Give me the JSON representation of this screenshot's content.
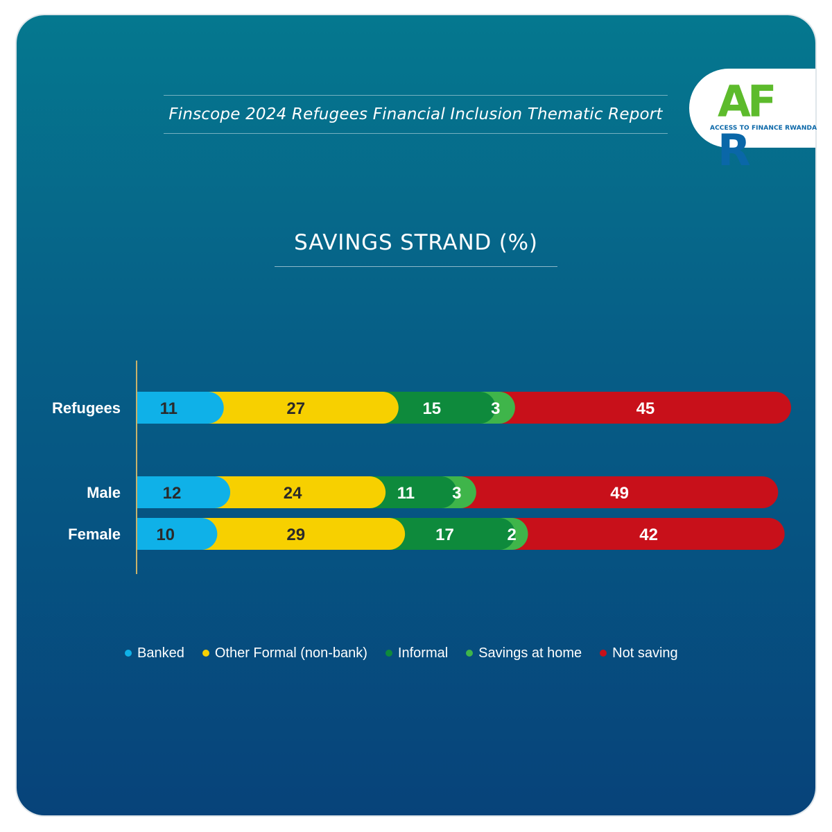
{
  "header": {
    "report_title": "Finscope 2024 Refugees Financial Inclusion Thematic Report"
  },
  "logo": {
    "letters": "AFR",
    "tagline": "ACCESS TO FINANCE RWANDA",
    "color_green": "#5dbb2c",
    "color_blue": "#0a67a8"
  },
  "chart_data": {
    "type": "bar",
    "orientation": "horizontal",
    "stacked": true,
    "title": "SAVINGS STRAND (%)",
    "categories": [
      "Refugees",
      "Male",
      "Female"
    ],
    "series": [
      {
        "name": "Banked",
        "color": "#0fb1e8",
        "label_color": "#2a2a2a",
        "values": [
          11,
          12,
          10
        ]
      },
      {
        "name": "Other Formal (non-bank)",
        "color": "#f7d000",
        "label_color": "#2a2a2a",
        "values": [
          27,
          24,
          29
        ]
      },
      {
        "name": "Informal",
        "color": "#0e8a3c",
        "label_color": "#ffffff",
        "values": [
          15,
          11,
          17
        ]
      },
      {
        "name": "Savings at home",
        "color": "#3fb54a",
        "label_color": "#ffffff",
        "values": [
          3,
          3,
          2
        ]
      },
      {
        "name": "Not saving",
        "color": "#c8101a",
        "label_color": "#ffffff",
        "values": [
          45,
          49,
          42
        ]
      }
    ],
    "xlim": [
      0,
      101
    ],
    "legend_position": "bottom",
    "grid": false
  }
}
